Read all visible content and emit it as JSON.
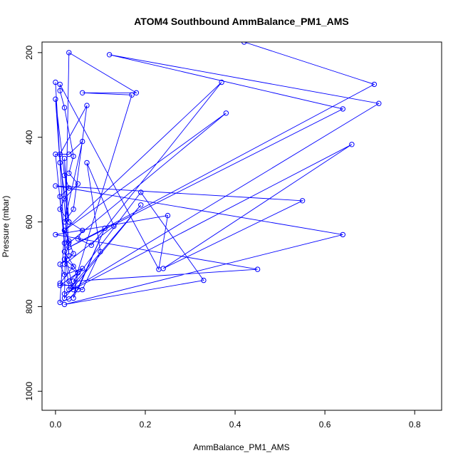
{
  "chart_data": {
    "type": "scatter",
    "title": "ATOM4 Southbound AmmBalance_PM1_AMS",
    "xlabel": "AmmBalance_PM1_AMS",
    "ylabel": "Pressure (mbar)",
    "xlim": [
      -0.03,
      0.86
    ],
    "ylim": [
      1045,
      175
    ],
    "y_reversed": true,
    "x_ticks": [
      0.0,
      0.2,
      0.4,
      0.6,
      0.8
    ],
    "x_tick_labels": [
      "0.0",
      "0.2",
      "0.4",
      "0.6",
      "0.8"
    ],
    "y_ticks": [
      200,
      400,
      600,
      800,
      1000
    ],
    "y_tick_labels": [
      "200",
      "400",
      "600",
      "800",
      "1000"
    ],
    "grid": false,
    "legend": "none",
    "markers": "open-circle",
    "connected": true,
    "color": "#0000ff",
    "series": [
      {
        "x": [
          0.42,
          0.71,
          0.03,
          0.64,
          0.12,
          0.72,
          0.02,
          0.66,
          0.24,
          0.55,
          0.0,
          0.64,
          0.02,
          0.33,
          0.19,
          0.04,
          0.45,
          0.0,
          0.25,
          0.23,
          0.01,
          0.01,
          0.02,
          0.04,
          0.03,
          0.05,
          0.02,
          0.01,
          0.03,
          0.06,
          0.05,
          0.08,
          0.37,
          0.02,
          0.38,
          0.03,
          0.02,
          0.04,
          0.01,
          0.06,
          0.1,
          0.07,
          0.13,
          0.02,
          0.05,
          0.04,
          0.11,
          0.05,
          0.03,
          0.01,
          0.02,
          0.03,
          0.04,
          0.01,
          0.02,
          0.06,
          0.03,
          0.04,
          0.02,
          0.05,
          0.01,
          0.04,
          0.17,
          0.06,
          0.18,
          0.03,
          0.02,
          0.19,
          0.03,
          0.0,
          0.03,
          0.06,
          0.02,
          0.04,
          0.07,
          0.01,
          0.03,
          0.02,
          0.03,
          0.01,
          0.0,
          0.02,
          0.03,
          0.01,
          0.02,
          0.0
        ],
        "y": [
          175,
          275,
          660,
          333,
          205,
          320,
          770,
          417,
          710,
          550,
          515,
          630,
          795,
          738,
          530,
          740,
          712,
          630,
          585,
          712,
          275,
          290,
          330,
          445,
          485,
          510,
          545,
          570,
          600,
          620,
          640,
          655,
          270,
          620,
          343,
          650,
          688,
          705,
          745,
          760,
          670,
          460,
          610,
          700,
          720,
          780,
          615,
          760,
          782,
          790,
          620,
          645,
          675,
          700,
          725,
          710,
          740,
          760,
          670,
          720,
          750,
          750,
          300,
          295,
          295,
          200,
          780,
          560,
          760,
          440,
          440,
          410,
          600,
          570,
          325,
          440,
          680,
          450,
          600,
          460,
          310,
          490,
          520,
          540,
          650,
          270
        ]
      }
    ]
  }
}
